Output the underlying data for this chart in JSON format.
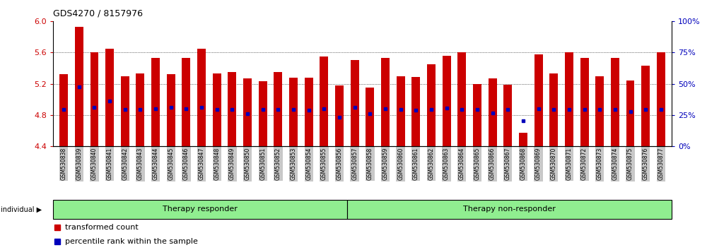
{
  "title": "GDS4270 / 8157976",
  "samples": [
    "GSM530838",
    "GSM530839",
    "GSM530840",
    "GSM530841",
    "GSM530842",
    "GSM530843",
    "GSM530844",
    "GSM530845",
    "GSM530846",
    "GSM530847",
    "GSM530848",
    "GSM530849",
    "GSM530850",
    "GSM530851",
    "GSM530852",
    "GSM530853",
    "GSM530854",
    "GSM530855",
    "GSM530856",
    "GSM530857",
    "GSM530858",
    "GSM530859",
    "GSM530860",
    "GSM530861",
    "GSM530862",
    "GSM530863",
    "GSM530864",
    "GSM530865",
    "GSM530866",
    "GSM530867",
    "GSM530868",
    "GSM530869",
    "GSM530870",
    "GSM530871",
    "GSM530872",
    "GSM530873",
    "GSM530874",
    "GSM530875",
    "GSM530876",
    "GSM530877"
  ],
  "bar_heights": [
    5.32,
    5.93,
    5.6,
    5.65,
    5.3,
    5.33,
    5.53,
    5.32,
    5.53,
    5.65,
    5.33,
    5.35,
    5.27,
    5.23,
    5.35,
    5.28,
    5.28,
    5.55,
    5.18,
    5.5,
    5.15,
    5.53,
    5.3,
    5.29,
    5.45,
    5.56,
    5.6,
    5.2,
    5.27,
    5.19,
    4.57,
    5.58,
    5.33,
    5.6,
    5.53,
    5.3,
    5.53,
    5.24,
    5.43,
    5.6
  ],
  "blue_dot_values": [
    4.87,
    5.16,
    4.9,
    4.98,
    4.87,
    4.87,
    4.88,
    4.9,
    4.88,
    4.9,
    4.87,
    4.87,
    4.82,
    4.87,
    4.87,
    4.87,
    4.86,
    4.88,
    4.77,
    4.9,
    4.82,
    4.88,
    4.87,
    4.86,
    4.87,
    4.89,
    4.87,
    4.87,
    4.83,
    4.87,
    4.73,
    4.88,
    4.87,
    4.87,
    4.87,
    4.87,
    4.87,
    4.84,
    4.87,
    4.87
  ],
  "group_labels": [
    "Therapy responder",
    "Therapy non-responder"
  ],
  "responder_count": 19,
  "total_count": 40,
  "bar_color": "#CC0000",
  "dot_color": "#0000BB",
  "ylim": [
    4.4,
    6.0
  ],
  "yticks_left": [
    4.4,
    4.8,
    5.2,
    5.6,
    6.0
  ],
  "yticks_right_pct": [
    0,
    25,
    50,
    75,
    100
  ],
  "grid_values": [
    4.8,
    5.2,
    5.6
  ],
  "tick_color_left": "#CC0000",
  "tick_color_right": "#0000BB",
  "legend_labels": [
    "transformed count",
    "percentile rank within the sample"
  ],
  "legend_colors": [
    "#CC0000",
    "#0000BB"
  ],
  "individual_label": "individual",
  "group_bg_color": "#90EE90",
  "xticklabel_bg": "#C8C8C8"
}
